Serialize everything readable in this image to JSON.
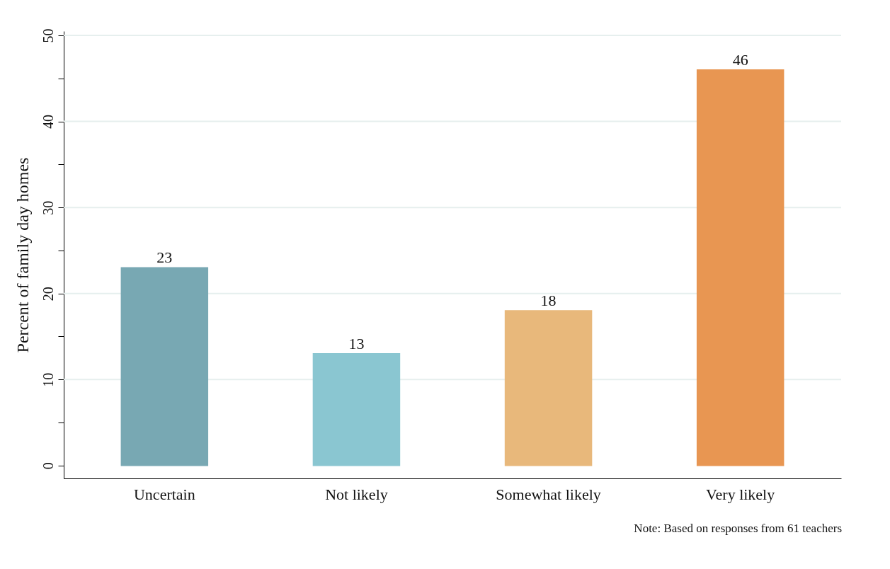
{
  "chart_data": {
    "type": "bar",
    "ylabel": "Percent of family day homes",
    "categories": [
      "Uncertain",
      "Not likely",
      "Somewhat likely",
      "Very likely"
    ],
    "values": [
      23,
      13,
      18,
      46
    ],
    "colors": [
      "#78a8b3",
      "#8ac6d1",
      "#e8b87b",
      "#e89652"
    ],
    "ylim": [
      -1.5,
      50.5
    ],
    "yticks": [
      0,
      {
        "value": 5,
        "label": null
      },
      10,
      {
        "value": 15,
        "label": null
      },
      20,
      {
        "value": 25,
        "label": null
      },
      30,
      {
        "value": 35,
        "label": null
      },
      40,
      {
        "value": 45,
        "label": null
      },
      50
    ],
    "grid": "y",
    "data_labels": true,
    "annotations": [
      "Note: Based on responses from 61 teachers"
    ]
  }
}
